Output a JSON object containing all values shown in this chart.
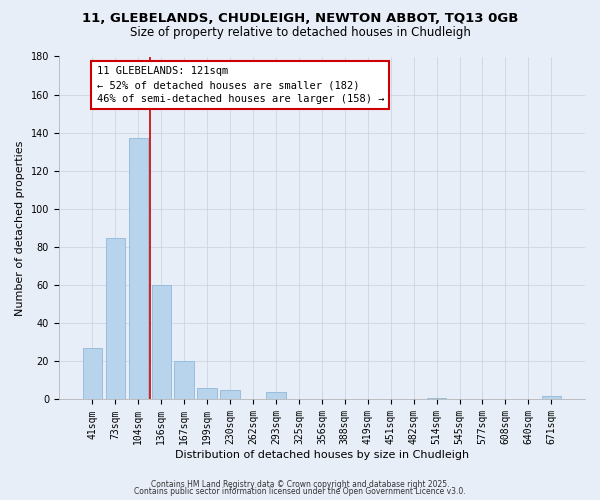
{
  "title_line1": "11, GLEBELANDS, CHUDLEIGH, NEWTON ABBOT, TQ13 0GB",
  "title_line2": "Size of property relative to detached houses in Chudleigh",
  "xlabel": "Distribution of detached houses by size in Chudleigh",
  "ylabel": "Number of detached properties",
  "categories": [
    "41sqm",
    "73sqm",
    "104sqm",
    "136sqm",
    "167sqm",
    "199sqm",
    "230sqm",
    "262sqm",
    "293sqm",
    "325sqm",
    "356sqm",
    "388sqm",
    "419sqm",
    "451sqm",
    "482sqm",
    "514sqm",
    "545sqm",
    "577sqm",
    "608sqm",
    "640sqm",
    "671sqm"
  ],
  "values": [
    27,
    85,
    137,
    60,
    20,
    6,
    5,
    0,
    4,
    0,
    0,
    0,
    0,
    0,
    0,
    1,
    0,
    0,
    0,
    0,
    2
  ],
  "bar_color": "#b8d4ec",
  "bar_edge_color": "#90b8d8",
  "vline_x": 2.5,
  "vline_color": "#cc0000",
  "annotation_title": "11 GLEBELANDS: 121sqm",
  "annotation_line2": "← 52% of detached houses are smaller (182)",
  "annotation_line3": "46% of semi-detached houses are larger (158) →",
  "annotation_box_color": "#ffffff",
  "annotation_box_edge": "#cc0000",
  "ylim": [
    0,
    180
  ],
  "yticks": [
    0,
    20,
    40,
    60,
    80,
    100,
    120,
    140,
    160,
    180
  ],
  "footer_line1": "Contains HM Land Registry data © Crown copyright and database right 2025.",
  "footer_line2": "Contains public sector information licensed under the Open Government Licence v3.0.",
  "bg_color": "#e8eef8",
  "plot_bg_color": "#e8eef8",
  "title_fontsize": 9.5,
  "subtitle_fontsize": 8.5,
  "tick_fontsize": 7,
  "axis_label_fontsize": 8,
  "footer_fontsize": 5.5,
  "ann_fontsize": 7.5
}
